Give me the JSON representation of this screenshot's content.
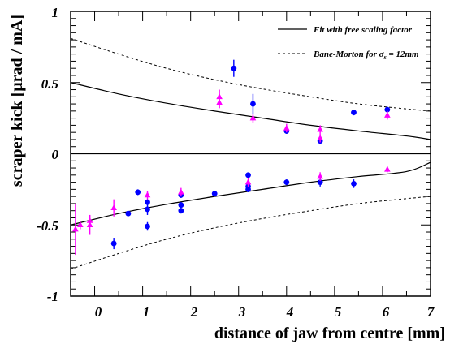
{
  "chart_data": {
    "type": "scatter",
    "xlabel": "distance of jaw from centre [mm]",
    "ylabel": "scraper kick [μrad / mA]",
    "xlim": [
      -0.5,
      7
    ],
    "ylim": [
      -1,
      1
    ],
    "x_ticks": [
      "0",
      "1",
      "2",
      "3",
      "4",
      "5",
      "6",
      "7"
    ],
    "y_ticks": [
      "1",
      "0.5",
      "0",
      "-0.5",
      "-1"
    ],
    "legend": {
      "position": "top-right",
      "fit_label": "Fit with free scaling factor",
      "bane_prefix": "Bane-Morton for σ",
      "bane_sub": "s",
      "bane_suffix": " = 12mm"
    },
    "colors": {
      "blue": "#0000ff",
      "magenta": "#ff00ff",
      "line": "#000000"
    },
    "lines": [
      {
        "name": "Fit with free scaling factor",
        "style": "solid",
        "x": [
          -0.5,
          0.5,
          1.5,
          2.5,
          3.5,
          4.5,
          5.5,
          6.5,
          7.0
        ],
        "y": [
          0.5,
          0.42,
          0.355,
          0.3,
          0.25,
          0.2,
          0.16,
          0.125,
          0.1
        ]
      },
      {
        "name": "Fit with free scaling factor",
        "style": "solid",
        "x": [
          -0.5,
          0.5,
          1.5,
          2.5,
          3.5,
          4.5,
          5.5,
          6.5,
          7.0
        ],
        "y": [
          -0.5,
          -0.42,
          -0.355,
          -0.3,
          -0.25,
          -0.2,
          -0.16,
          -0.125,
          -0.06
        ]
      },
      {
        "name": "Bane-Morton for σs = 12mm",
        "style": "dashed",
        "x": [
          -0.5,
          0.5,
          1.5,
          2.5,
          3.5,
          4.5,
          5.5,
          6.5,
          7.0
        ],
        "y": [
          0.81,
          0.7,
          0.6,
          0.52,
          0.455,
          0.4,
          0.35,
          0.315,
          0.3
        ]
      },
      {
        "name": "Bane-Morton for σs = 12mm",
        "style": "dashed",
        "x": [
          -0.5,
          0.5,
          1.5,
          2.5,
          3.5,
          4.5,
          5.5,
          6.5,
          7.0
        ],
        "y": [
          -0.81,
          -0.7,
          -0.6,
          -0.52,
          -0.455,
          -0.4,
          -0.35,
          -0.315,
          -0.3
        ]
      }
    ],
    "series": [
      {
        "marker": "circle",
        "color": "blue",
        "points": [
          {
            "x": 2.9,
            "y": 0.6,
            "err": 0.06
          },
          {
            "x": 3.3,
            "y": 0.35,
            "err": 0.07
          },
          {
            "x": 4.0,
            "y": 0.16,
            "err": 0.02
          },
          {
            "x": 4.7,
            "y": 0.09,
            "err": 0.02
          },
          {
            "x": 5.4,
            "y": 0.29,
            "err": 0.02
          },
          {
            "x": 6.1,
            "y": 0.31,
            "err": 0.02
          },
          {
            "x": 0.4,
            "y": -0.63,
            "err": 0.04
          },
          {
            "x": 0.7,
            "y": -0.42,
            "err": 0.01
          },
          {
            "x": 0.9,
            "y": -0.27,
            "err": 0.02
          },
          {
            "x": 1.1,
            "y": -0.34,
            "err": 0.02
          },
          {
            "x": 1.1,
            "y": -0.39,
            "err": 0.04
          },
          {
            "x": 1.1,
            "y": -0.51,
            "err": 0.03
          },
          {
            "x": 1.8,
            "y": -0.29,
            "err": 0.02
          },
          {
            "x": 1.8,
            "y": -0.36,
            "err": 0.02
          },
          {
            "x": 1.8,
            "y": -0.4,
            "err": 0.02
          },
          {
            "x": 2.5,
            "y": -0.28,
            "err": 0.02
          },
          {
            "x": 3.2,
            "y": -0.15,
            "err": 0.01
          },
          {
            "x": 3.2,
            "y": -0.23,
            "err": 0.02
          },
          {
            "x": 3.2,
            "y": -0.25,
            "err": 0.02
          },
          {
            "x": 4.0,
            "y": -0.2,
            "err": 0.02
          },
          {
            "x": 4.7,
            "y": -0.2,
            "err": 0.03
          },
          {
            "x": 5.4,
            "y": -0.21,
            "err": 0.03
          }
        ]
      },
      {
        "marker": "triangle",
        "color": "magenta",
        "points": [
          {
            "x": 2.6,
            "y": 0.4,
            "err": 0.05
          },
          {
            "x": 2.6,
            "y": 0.36,
            "err": 0.04
          },
          {
            "x": 3.3,
            "y": 0.25,
            "err": 0.03
          },
          {
            "x": 4.0,
            "y": 0.18,
            "err": 0.03
          },
          {
            "x": 4.7,
            "y": 0.17,
            "err": 0.03
          },
          {
            "x": 4.7,
            "y": 0.11,
            "err": 0.03
          },
          {
            "x": 6.1,
            "y": 0.27,
            "err": 0.03
          },
          {
            "x": -0.4,
            "y": -0.53,
            "err": 0.18
          },
          {
            "x": -0.3,
            "y": -0.5,
            "err": 0.03
          },
          {
            "x": -0.1,
            "y": -0.47,
            "err": 0.04
          },
          {
            "x": -0.1,
            "y": -0.5,
            "err": 0.07
          },
          {
            "x": 0.4,
            "y": -0.38,
            "err": 0.06
          },
          {
            "x": 1.1,
            "y": -0.29,
            "err": 0.03
          },
          {
            "x": 1.8,
            "y": -0.27,
            "err": 0.03
          },
          {
            "x": 3.2,
            "y": -0.2,
            "err": 0.03
          },
          {
            "x": 4.7,
            "y": -0.16,
            "err": 0.03
          },
          {
            "x": 6.1,
            "y": -0.11,
            "err": 0.02
          }
        ]
      }
    ]
  }
}
